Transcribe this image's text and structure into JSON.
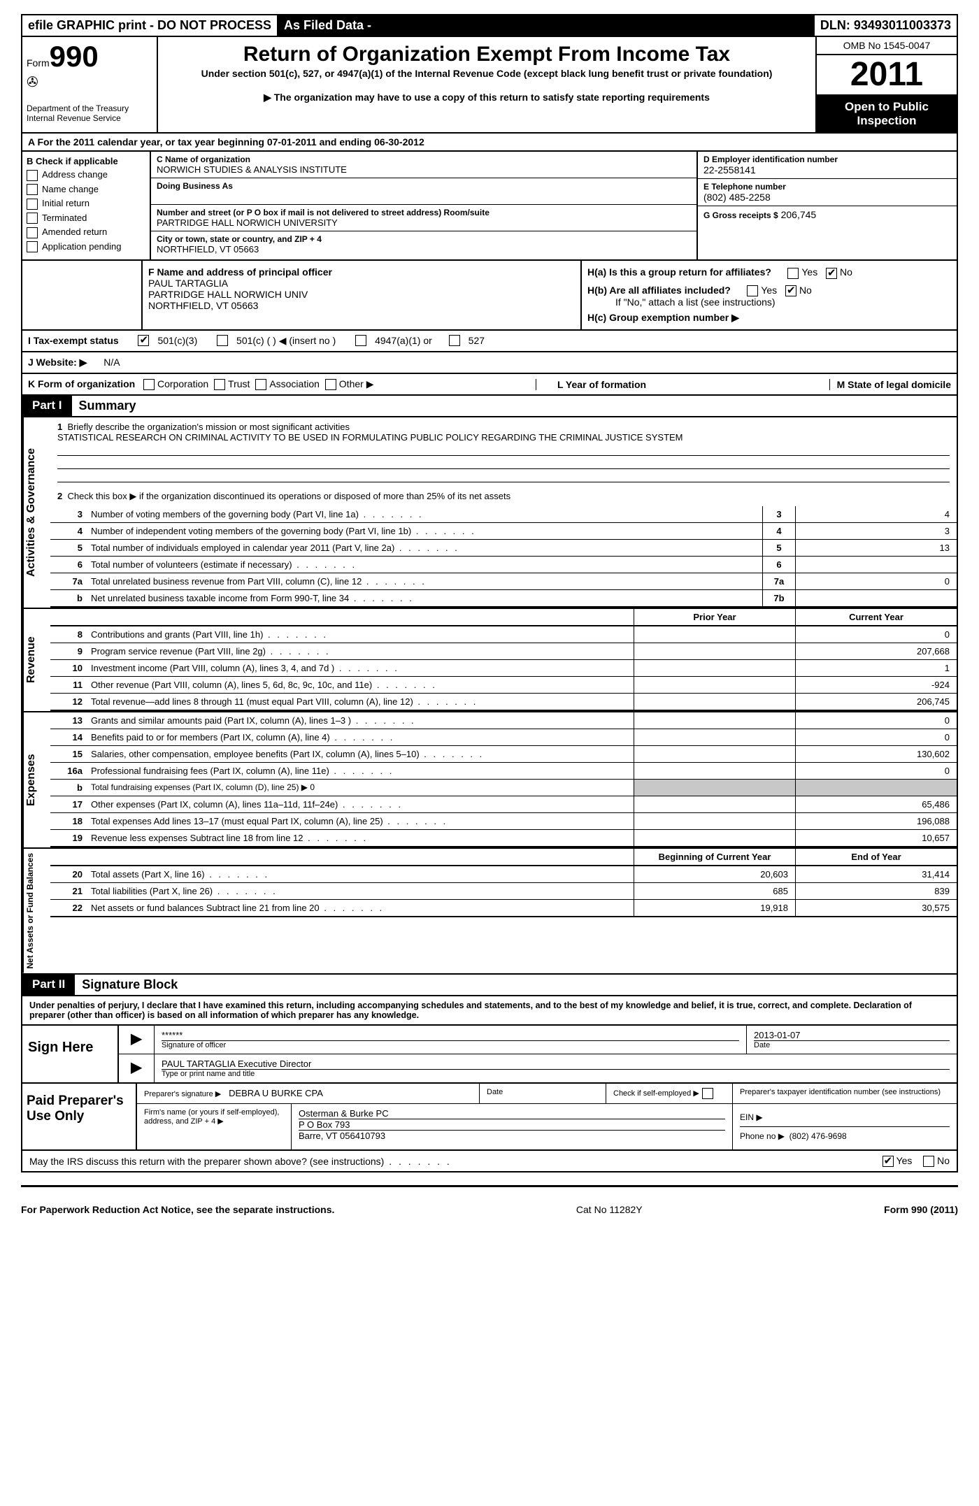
{
  "top": {
    "efile": "efile GRAPHIC print - DO NOT PROCESS",
    "asfiled": "As Filed Data -",
    "dln": "DLN: 93493011003373"
  },
  "header": {
    "form_label": "Form",
    "form_number": "990",
    "dept1": "Department of the Treasury",
    "dept2": "Internal Revenue Service",
    "title": "Return of Organization Exempt From Income Tax",
    "sub1": "Under section 501(c), 527, or 4947(a)(1) of the Internal Revenue Code (except black lung benefit trust or private foundation)",
    "sub2": "▶ The organization may have to use a copy of this return to satisfy state reporting requirements",
    "omb": "OMB No 1545-0047",
    "year": "2011",
    "open": "Open to Public Inspection"
  },
  "rowA": "A  For the 2011 calendar year, or tax year beginning 07-01-2011    and ending 06-30-2012",
  "b": {
    "title": "B  Check if applicable",
    "items": [
      "Address change",
      "Name change",
      "Initial return",
      "Terminated",
      "Amended return",
      "Application pending"
    ]
  },
  "c": {
    "name_lbl": "C Name of organization",
    "name": "NORWICH STUDIES & ANALYSIS INSTITUTE",
    "dba_lbl": "Doing Business As",
    "addr_lbl": "Number and street (or P O  box if mail is not delivered to street address)  Room/suite",
    "addr": "PARTRIDGE HALL NORWICH UNIVERSITY",
    "city_lbl": "City or town, state or country, and ZIP + 4",
    "city": "NORTHFIELD, VT  05663"
  },
  "d": {
    "ein_lbl": "D Employer identification number",
    "ein": "22-2558141",
    "phone_lbl": "E Telephone number",
    "phone": "(802) 485-2258",
    "gross_lbl": "G Gross receipts $",
    "gross": "206,745"
  },
  "f": {
    "lbl": "F  Name and address of principal officer",
    "l1": "PAUL TARTAGLIA",
    "l2": "PARTRIDGE HALL NORWICH UNIV",
    "l3": "NORTHFIELD, VT  05663"
  },
  "h": {
    "a_lbl": "H(a)  Is this a group return for affiliates?",
    "b_lbl": "H(b)  Are all affiliates included?",
    "b_sub": "If \"No,\" attach a list  (see instructions)",
    "c_lbl": "H(c)   Group exemption number ▶",
    "yes": "Yes",
    "no": "No"
  },
  "i": {
    "lbl": "I   Tax-exempt status",
    "o1": "501(c)(3)",
    "o2": "501(c) (   ) ◀ (insert no )",
    "o3": "4947(a)(1) or",
    "o4": "527"
  },
  "j": {
    "lbl": "J   Website: ▶",
    "val": "N/A"
  },
  "k": {
    "lbl": "K Form of organization",
    "opts": [
      "Corporation",
      "Trust",
      "Association",
      "Other ▶"
    ],
    "l_lbl": "L Year of formation",
    "m_lbl": "M State of legal domicile"
  },
  "part1": {
    "tag": "Part I",
    "title": "Summary"
  },
  "summary": {
    "vtabs": [
      "Activities & Governance",
      "Revenue",
      "Expenses",
      "Net Assets or Fund Balances"
    ],
    "line1_lbl": "Briefly describe the organization's mission or most significant activities",
    "line1_txt": "STATISTICAL RESEARCH ON CRIMINAL ACTIVITY TO BE USED IN FORMULATING PUBLIC POLICY REGARDING THE CRIMINAL JUSTICE SYSTEM",
    "line2": "Check this box ▶     if the organization discontinued its operations or disposed of more than 25% of its net assets",
    "rows_ag": [
      {
        "n": "3",
        "d": "Number of voting members of the governing body (Part VI, line 1a)",
        "box": "3",
        "v": "4"
      },
      {
        "n": "4",
        "d": "Number of independent voting members of the governing body (Part VI, line 1b)",
        "box": "4",
        "v": "3"
      },
      {
        "n": "5",
        "d": "Total number of individuals employed in calendar year 2011 (Part V, line 2a)",
        "box": "5",
        "v": "13"
      },
      {
        "n": "6",
        "d": "Total number of volunteers (estimate if necessary)",
        "box": "6",
        "v": ""
      },
      {
        "n": "7a",
        "d": "Total unrelated business revenue from Part VIII, column (C), line 12",
        "box": "7a",
        "v": "0"
      },
      {
        "n": "b",
        "d": "Net unrelated business taxable income from Form 990-T, line 34",
        "box": "7b",
        "v": ""
      }
    ],
    "col_prior": "Prior Year",
    "col_current": "Current Year",
    "rows_rev": [
      {
        "n": "8",
        "d": "Contributions and grants (Part VIII, line 1h)",
        "p": "",
        "c": "0"
      },
      {
        "n": "9",
        "d": "Program service revenue (Part VIII, line 2g)",
        "p": "",
        "c": "207,668"
      },
      {
        "n": "10",
        "d": "Investment income (Part VIII, column (A), lines 3, 4, and 7d )",
        "p": "",
        "c": "1"
      },
      {
        "n": "11",
        "d": "Other revenue (Part VIII, column (A), lines 5, 6d, 8c, 9c, 10c, and 11e)",
        "p": "",
        "c": "-924"
      },
      {
        "n": "12",
        "d": "Total revenue—add lines 8 through 11 (must equal Part VIII, column (A), line 12)",
        "p": "",
        "c": "206,745"
      }
    ],
    "rows_exp": [
      {
        "n": "13",
        "d": "Grants and similar amounts paid (Part IX, column (A), lines 1–3 )",
        "p": "",
        "c": "0"
      },
      {
        "n": "14",
        "d": "Benefits paid to or for members (Part IX, column (A), line 4)",
        "p": "",
        "c": "0"
      },
      {
        "n": "15",
        "d": "Salaries, other compensation, employee benefits (Part IX, column (A), lines 5–10)",
        "p": "",
        "c": "130,602"
      },
      {
        "n": "16a",
        "d": "Professional fundraising fees (Part IX, column (A), line 11e)",
        "p": "",
        "c": "0"
      },
      {
        "n": "b",
        "d": "Total fundraising expenses (Part IX, column (D), line 25)  ▶ 0",
        "p": "grey",
        "c": "grey"
      },
      {
        "n": "17",
        "d": "Other expenses (Part IX, column (A), lines 11a–11d, 11f–24e)",
        "p": "",
        "c": "65,486"
      },
      {
        "n": "18",
        "d": "Total expenses  Add lines 13–17 (must equal Part IX, column (A), line 25)",
        "p": "",
        "c": "196,088"
      },
      {
        "n": "19",
        "d": "Revenue less expenses  Subtract line 18 from line 12",
        "p": "",
        "c": "10,657"
      }
    ],
    "col_begin": "Beginning of Current Year",
    "col_end": "End of Year",
    "rows_net": [
      {
        "n": "20",
        "d": "Total assets (Part X, line 16)",
        "p": "20,603",
        "c": "31,414"
      },
      {
        "n": "21",
        "d": "Total liabilities (Part X, line 26)",
        "p": "685",
        "c": "839"
      },
      {
        "n": "22",
        "d": "Net assets or fund balances  Subtract line 21 from line 20",
        "p": "19,918",
        "c": "30,575"
      }
    ]
  },
  "part2": {
    "tag": "Part II",
    "title": "Signature Block"
  },
  "perjury": "Under penalties of perjury, I declare that I have examined this return, including accompanying schedules and statements, and to the best of my knowledge and belief, it is true, correct, and complete. Declaration of preparer (other than officer) is based on all information of which preparer has any knowledge.",
  "sign": {
    "left": "Sign Here",
    "stars": "******",
    "sig_lbl": "Signature of officer",
    "date_lbl": "Date",
    "date": "2013-01-07",
    "name": "PAUL TARTAGLIA Executive Director",
    "name_lbl": "Type or print name and title"
  },
  "prep": {
    "left": "Paid Preparer's Use Only",
    "sig_lbl": "Preparer's signature ▶",
    "name": "DEBRA U BURKE CPA",
    "date_lbl": "Date",
    "self_lbl": "Check if self-employed  ▶",
    "ptin_lbl": "Preparer's taxpayer identification number (see instructions)",
    "firm_lbl": "Firm's name (or yours if self-employed), address, and ZIP + 4 ▶",
    "firm1": "Osterman & Burke PC",
    "firm2": "P O Box 793",
    "firm3": "Barre, VT  056410793",
    "ein_lbl": "EIN  ▶",
    "phone_lbl": "Phone no   ▶",
    "phone": "(802) 476-9698"
  },
  "discuss": {
    "q": "May the IRS discuss this return with the preparer shown above? (see instructions)",
    "yes": "Yes",
    "no": "No"
  },
  "foot": {
    "l": "For Paperwork Reduction Act Notice, see the separate instructions.",
    "m": "Cat No 11282Y",
    "r": "Form 990 (2011)"
  }
}
